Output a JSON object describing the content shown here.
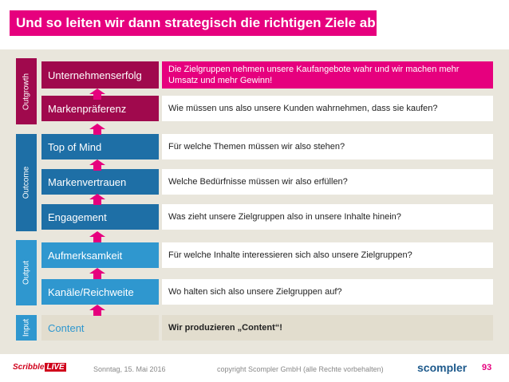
{
  "title": "Und so leiten wir dann strategisch die richtigen Ziele ab!",
  "colors": {
    "magenta": "#e6007e",
    "dark_magenta": "#a0094d",
    "blue": "#1e6fa6",
    "light_blue": "#2f97cf",
    "panel": "#e9e6dc",
    "input_fill": "#e2ddce"
  },
  "sections": [
    {
      "label": "Outgrowth"
    },
    {
      "label": "Outcome"
    },
    {
      "label": "Output"
    },
    {
      "label": "Input"
    }
  ],
  "rows": [
    {
      "label": "Unternehmenserfolg",
      "question": "Die Zielgruppen nehmen unsere Kaufangebote wahr und wir machen mehr Umsatz und mehr Gewinn!"
    },
    {
      "label": "Markenpräferenz",
      "question": "Wie müssen uns also unsere Kunden wahrnehmen, dass sie kaufen?"
    },
    {
      "label": "Top of Mind",
      "question": "Für welche Themen müssen wir also stehen?"
    },
    {
      "label": "Markenvertrauen",
      "question": "Welche Bedürfnisse müssen wir also erfüllen?"
    },
    {
      "label": "Engagement",
      "question": "Was zieht unsere Zielgruppen also in unsere Inhalte hinein?"
    },
    {
      "label": "Aufmerksamkeit",
      "question": "Für welche Inhalte interessieren sich also unsere Zielgruppen?"
    },
    {
      "label": "Kanäle/Reichweite",
      "question": "Wo halten sich also unsere Zielgruppen auf?"
    },
    {
      "label": "Content",
      "question": "Wir produzieren „Content“!"
    }
  ],
  "footer": {
    "logo_text": "Scribble",
    "logo_live": "LIVE",
    "date": "Sonntag, 15. Mai 2016",
    "copyright": "copyright Scompler GmbH (alle Rechte vorbehalten)",
    "brand": "scompler",
    "page": "93"
  }
}
